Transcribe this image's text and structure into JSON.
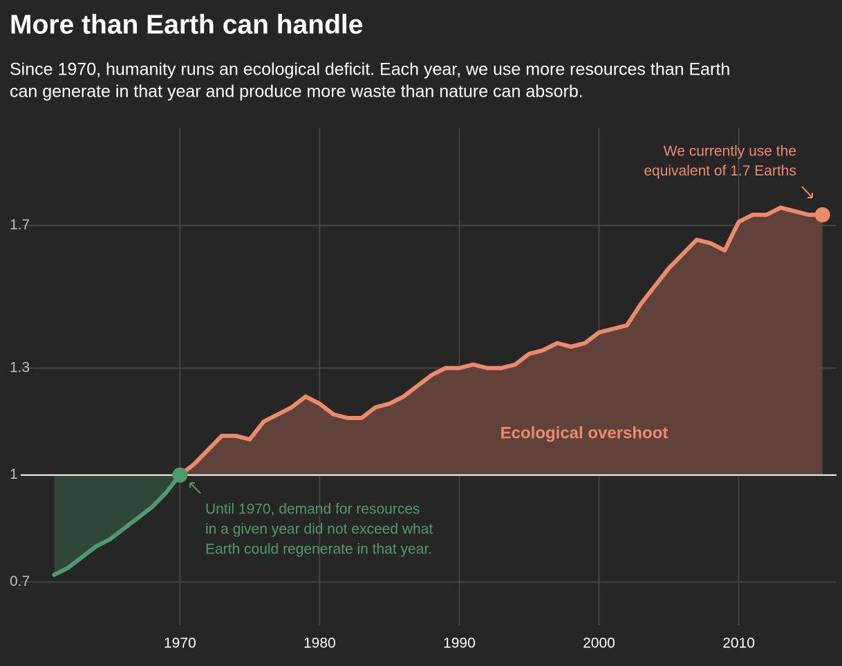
{
  "chart_data": {
    "type": "area",
    "title": "More than Earth can handle",
    "subtitle": [
      "Since 1970, humanity runs an ecological deficit. Each year, we use more resources than Earth",
      "can generate in that year and produce more waste than nature can absorb."
    ],
    "x": [
      1961,
      1962,
      1963,
      1964,
      1965,
      1966,
      1967,
      1968,
      1969,
      1970,
      1971,
      1972,
      1973,
      1974,
      1975,
      1976,
      1977,
      1978,
      1979,
      1980,
      1981,
      1982,
      1983,
      1984,
      1985,
      1986,
      1987,
      1988,
      1989,
      1990,
      1991,
      1992,
      1993,
      1994,
      1995,
      1996,
      1997,
      1998,
      1999,
      2000,
      2001,
      2002,
      2003,
      2004,
      2005,
      2006,
      2007,
      2008,
      2009,
      2010,
      2011,
      2012,
      2013,
      2014,
      2015,
      2016
    ],
    "series": [
      {
        "color": "#4f9a6c",
        "fill": "#2f4739",
        "values": [
          0.72,
          0.74,
          0.77,
          0.8,
          0.82,
          0.85,
          0.88,
          0.91,
          0.95,
          1.0,
          null,
          null,
          null,
          null,
          null,
          null,
          null,
          null,
          null,
          null,
          null,
          null,
          null,
          null,
          null,
          null,
          null,
          null,
          null,
          null,
          null,
          null,
          null,
          null,
          null,
          null,
          null,
          null,
          null,
          null,
          null,
          null,
          null,
          null,
          null,
          null,
          null,
          null,
          null,
          null,
          null,
          null,
          null,
          null,
          null,
          null
        ]
      },
      {
        "color": "#ee8a6c",
        "fill": "#60423b",
        "values": [
          null,
          null,
          null,
          null,
          null,
          null,
          null,
          null,
          null,
          1.0,
          1.03,
          1.07,
          1.11,
          1.11,
          1.1,
          1.15,
          1.17,
          1.19,
          1.22,
          1.2,
          1.17,
          1.16,
          1.16,
          1.19,
          1.2,
          1.22,
          1.25,
          1.28,
          1.3,
          1.3,
          1.31,
          1.3,
          1.3,
          1.31,
          1.34,
          1.35,
          1.37,
          1.36,
          1.37,
          1.4,
          1.41,
          1.42,
          1.48,
          1.53,
          1.58,
          1.62,
          1.66,
          1.65,
          1.63,
          1.71,
          1.73,
          1.73,
          1.75,
          1.74,
          1.73,
          1.73
        ]
      }
    ],
    "baseline": 1,
    "xlim": [
      1959,
      2017
    ],
    "xticks": [
      1970,
      1980,
      1990,
      2000,
      2010
    ],
    "ylim": [
      0.54,
      1.97
    ],
    "yticks": [
      0.7,
      1,
      1.3,
      1.7
    ],
    "grid": true,
    "annotations": [
      {
        "text": [
          "We currently use the",
          "equivalent of 1.7 Earths"
        ],
        "color": "#ee8a6c"
      },
      {
        "text": [
          "Until 1970, demand for resources",
          "in a given year did not exceed what",
          "Earth could regenerate in that year."
        ],
        "color": "#4f9a6c"
      },
      {
        "text": [
          "Ecological overshoot"
        ],
        "color": "#ee8a6c"
      }
    ]
  }
}
